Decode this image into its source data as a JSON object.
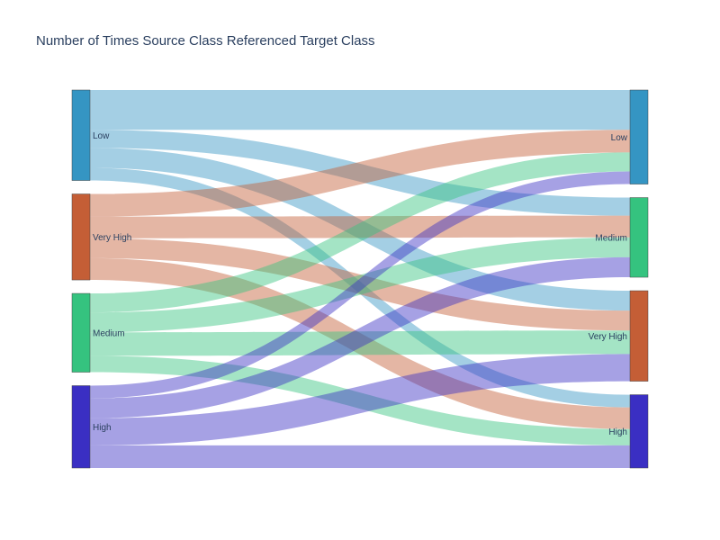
{
  "chart_data": {
    "type": "sankey",
    "title": "Number of Times Source Class Referenced Target Class",
    "source_nodes": [
      {
        "key": "low",
        "label": "Low",
        "color": "#3595C3"
      },
      {
        "key": "very_high",
        "label": "Very High",
        "color": "#C45E36"
      },
      {
        "key": "medium",
        "label": "Medium",
        "color": "#35C37F"
      },
      {
        "key": "high",
        "label": "High",
        "color": "#3A2FC3"
      }
    ],
    "target_nodes": [
      {
        "key": "low",
        "label": "Low",
        "color": "#3595C3"
      },
      {
        "key": "medium",
        "label": "Medium",
        "color": "#35C37F"
      },
      {
        "key": "very_high",
        "label": "Very High",
        "color": "#C45E36"
      },
      {
        "key": "high",
        "label": "High",
        "color": "#3A2FC3"
      }
    ],
    "links": [
      {
        "source": "low",
        "target": "low",
        "value": 44
      },
      {
        "source": "low",
        "target": "medium",
        "value": 20
      },
      {
        "source": "low",
        "target": "very_high",
        "value": 22
      },
      {
        "source": "low",
        "target": "high",
        "value": 14
      },
      {
        "source": "very_high",
        "target": "low",
        "value": 25
      },
      {
        "source": "very_high",
        "target": "medium",
        "value": 24
      },
      {
        "source": "very_high",
        "target": "very_high",
        "value": 22
      },
      {
        "source": "very_high",
        "target": "high",
        "value": 24
      },
      {
        "source": "medium",
        "target": "low",
        "value": 21
      },
      {
        "source": "medium",
        "target": "medium",
        "value": 22
      },
      {
        "source": "medium",
        "target": "very_high",
        "value": 26
      },
      {
        "source": "medium",
        "target": "high",
        "value": 18
      },
      {
        "source": "high",
        "target": "low",
        "value": 14
      },
      {
        "source": "high",
        "target": "medium",
        "value": 22
      },
      {
        "source": "high",
        "target": "very_high",
        "value": 30
      },
      {
        "source": "high",
        "target": "high",
        "value": 25
      }
    ]
  }
}
